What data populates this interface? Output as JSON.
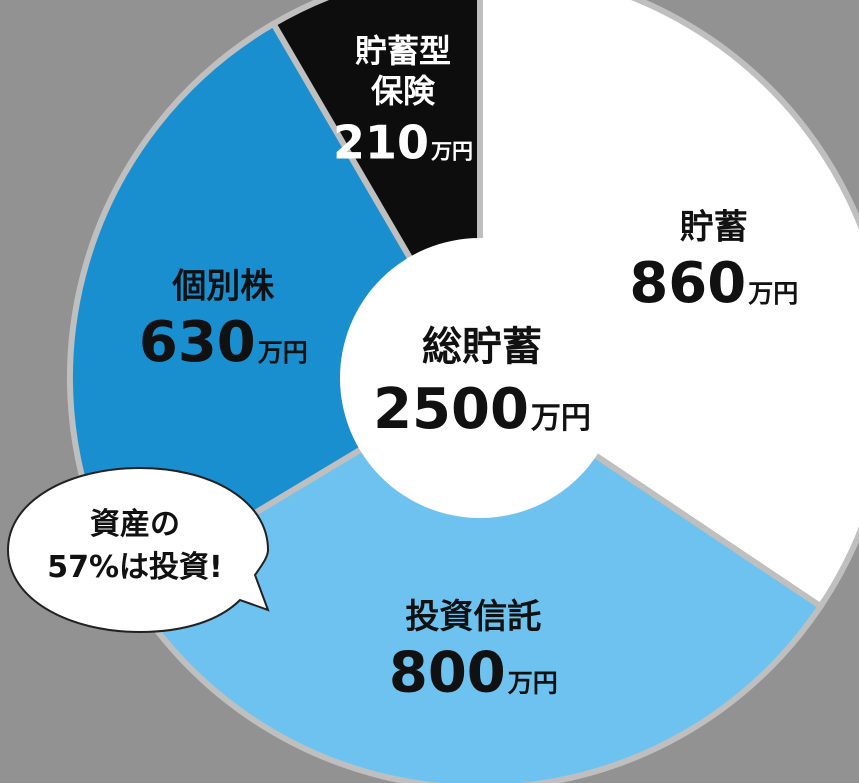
{
  "chart_data": {
    "type": "pie",
    "subtype": "donut",
    "center_label": "総貯蓄",
    "center_value": "2500",
    "center_unit": "万円",
    "unit": "万円",
    "slices": [
      {
        "label": "貯蓄",
        "label_lines": [
          "貯蓄"
        ],
        "value": 860,
        "color": "#ffffff",
        "text_color": "#111111"
      },
      {
        "label": "投資信託",
        "label_lines": [
          "投資信託"
        ],
        "value": 800,
        "color": "#6ec2ef",
        "text_color": "#111111"
      },
      {
        "label": "個別株",
        "label_lines": [
          "個別株"
        ],
        "value": 630,
        "color": "#1a8fd0",
        "text_color": "#111111"
      },
      {
        "label": "貯蓄型保険",
        "label_lines": [
          "貯蓄型",
          "保険"
        ],
        "value": 210,
        "color": "#0d0d0d",
        "text_color": "#ffffff"
      }
    ]
  },
  "callout": {
    "line1": "資産の",
    "line2": "57%は投資!"
  }
}
